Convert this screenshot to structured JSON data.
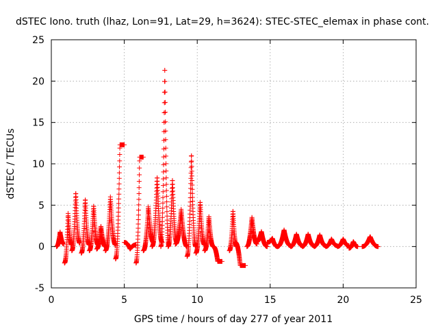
{
  "chart_data": {
    "type": "scatter",
    "title": "dSTEC Iono. truth (lhaz, Lon=91, Lat=29, h=3624): STEC-STEC_elemax in phase cont.",
    "xlabel": "GPS time / hours of day 277 of year 2011",
    "ylabel": "dSTEC  / TECUs",
    "xlim": [
      0,
      25
    ],
    "ylim": [
      -5,
      25
    ],
    "xticks": [
      0,
      5,
      10,
      15,
      20,
      25
    ],
    "yticks": [
      -5,
      0,
      5,
      10,
      15,
      20,
      25
    ],
    "xtick_labels": [
      "0",
      "5",
      "10",
      "15",
      "20",
      "25"
    ],
    "ytick_labels": [
      "-5",
      "0",
      "5",
      "10",
      "15",
      "20",
      "25"
    ],
    "grid": true,
    "legend": "none",
    "marker": "plus",
    "marker_color": "#ff0000",
    "arcs": [
      {
        "x0": 0.35,
        "x1": 0.85,
        "ys": 0.0,
        "yp": 1.8,
        "ye": 0.3
      },
      {
        "x0": 0.9,
        "x1": 1.4,
        "ys": -2.0,
        "yp": 4.0,
        "ye": 0.2
      },
      {
        "x0": 1.4,
        "x1": 1.95,
        "ys": -0.5,
        "yp": 6.6,
        "ye": 0.4
      },
      {
        "x0": 2.05,
        "x1": 2.6,
        "ys": -0.8,
        "yp": 5.8,
        "ye": 0.2
      },
      {
        "x0": 2.6,
        "x1": 3.2,
        "ys": -0.5,
        "yp": 5.0,
        "ye": 0.2
      },
      {
        "x0": 3.1,
        "x1": 3.7,
        "ys": -0.3,
        "yp": 2.5,
        "ye": 0.0
      },
      {
        "x0": 3.7,
        "x1": 4.4,
        "ys": -0.5,
        "yp": 6.0,
        "ye": 0.2
      },
      {
        "x0": 4.4,
        "x1": 5.0,
        "ys": -1.5,
        "yp": 12.3,
        "ye": 12.3
      },
      {
        "x0": 5.0,
        "x1": 5.8,
        "ys": 0.5,
        "yp": -0.3,
        "ye": 0.2
      },
      {
        "x0": 5.8,
        "x1": 6.3,
        "ys": -2.0,
        "yp": 10.8,
        "ye": 10.8
      },
      {
        "x0": 6.3,
        "x1": 7.0,
        "ys": -0.5,
        "yp": 4.8,
        "ye": 0.5
      },
      {
        "x0": 6.9,
        "x1": 7.6,
        "ys": 0.0,
        "yp": 8.5,
        "ye": 0.5
      },
      {
        "x0": 7.5,
        "x1": 8.05,
        "ys": 0.0,
        "yp": 22.0,
        "ye": 0.2
      },
      {
        "x0": 8.0,
        "x1": 8.6,
        "ys": 0.0,
        "yp": 8.2,
        "ye": 0.5
      },
      {
        "x0": 8.5,
        "x1": 9.3,
        "ys": 0.3,
        "yp": 4.5,
        "ye": 0.0
      },
      {
        "x0": 9.3,
        "x1": 9.9,
        "ys": -1.2,
        "yp": 11.3,
        "ye": 0.0
      },
      {
        "x0": 9.9,
        "x1": 10.5,
        "ys": -0.8,
        "yp": 5.5,
        "ye": 0.2
      },
      {
        "x0": 10.5,
        "x1": 11.1,
        "ys": -0.5,
        "yp": 3.7,
        "ye": 0.0
      },
      {
        "x0": 11.1,
        "x1": 11.7,
        "ys": 0.0,
        "yp": -1.8,
        "ye": -1.8
      },
      {
        "x0": 12.2,
        "x1": 12.7,
        "ys": -0.5,
        "yp": 4.4,
        "ye": 0.0
      },
      {
        "x0": 12.6,
        "x1": 13.3,
        "ys": 0.5,
        "yp": -2.3,
        "ye": -2.3
      },
      {
        "x0": 13.4,
        "x1": 14.1,
        "ys": 0.0,
        "yp": 3.6,
        "ye": 0.3
      },
      {
        "x0": 14.0,
        "x1": 14.8,
        "ys": 0.5,
        "yp": 1.8,
        "ye": 0.0
      },
      {
        "x0": 14.8,
        "x1": 15.5,
        "ys": 0.5,
        "yp": 1.0,
        "ye": 0.0
      },
      {
        "x0": 15.5,
        "x1": 16.4,
        "ys": 0.0,
        "yp": 2.0,
        "ye": 0.1
      },
      {
        "x0": 16.4,
        "x1": 17.2,
        "ys": 0.0,
        "yp": 1.5,
        "ye": 0.1
      },
      {
        "x0": 17.2,
        "x1": 18.0,
        "ys": 0.0,
        "yp": 1.5,
        "ye": 0.1
      },
      {
        "x0": 18.0,
        "x1": 18.8,
        "ys": 0.0,
        "yp": 1.4,
        "ye": 0.1
      },
      {
        "x0": 18.8,
        "x1": 19.6,
        "ys": 0.0,
        "yp": 0.9,
        "ye": 0.1
      },
      {
        "x0": 19.6,
        "x1": 20.4,
        "ys": 0.0,
        "yp": 0.9,
        "ye": 0.1
      },
      {
        "x0": 20.4,
        "x1": 21.0,
        "ys": -0.2,
        "yp": 0.6,
        "ye": 0.0
      },
      {
        "x0": 21.3,
        "x1": 22.4,
        "ys": 0.0,
        "yp": 1.2,
        "ye": 0.0
      }
    ]
  }
}
